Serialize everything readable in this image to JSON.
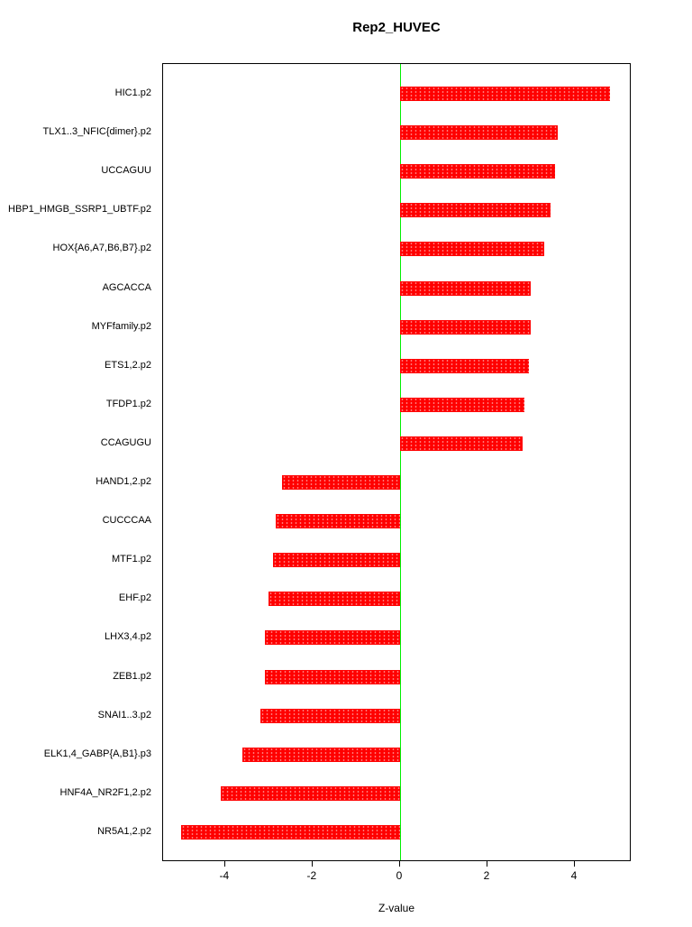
{
  "chart_data": {
    "type": "bar",
    "orientation": "horizontal",
    "title": "Rep2_HUVEC",
    "xlabel": "Z-value",
    "ylabel": "",
    "xlim": [
      -5.42,
      5.3
    ],
    "x_ticks": [
      -4,
      -2,
      0,
      2,
      4
    ],
    "grid": false,
    "legend": "none",
    "bar_color": "#ff0000",
    "zero_line_color": "#00ee00",
    "categories": [
      "HIC1.p2",
      "TLX1..3_NFIC{dimer}.p2",
      "UCCAGUU",
      "HBP1_HMGB_SSRP1_UBTF.p2",
      "HOX{A6,A7,B6,B7}.p2",
      "AGCACCA",
      "MYFfamily.p2",
      "ETS1,2.p2",
      "TFDP1.p2",
      "CCAGUGU",
      "HAND1,2.p2",
      "CUCCCAA",
      "MTF1.p2",
      "EHF.p2",
      "LHX3,4.p2",
      "ZEB1.p2",
      "SNAI1..3.p2",
      "ELK1,4_GABP{A,B1}.p3",
      "HNF4A_NR2F1,2.p2",
      "NR5A1,2.p2"
    ],
    "values": [
      4.8,
      3.6,
      3.55,
      3.45,
      3.3,
      3.0,
      3.0,
      2.95,
      2.85,
      2.8,
      -2.7,
      -2.85,
      -2.9,
      -3.0,
      -3.1,
      -3.1,
      -3.2,
      -3.6,
      -4.1,
      -5.0
    ]
  }
}
